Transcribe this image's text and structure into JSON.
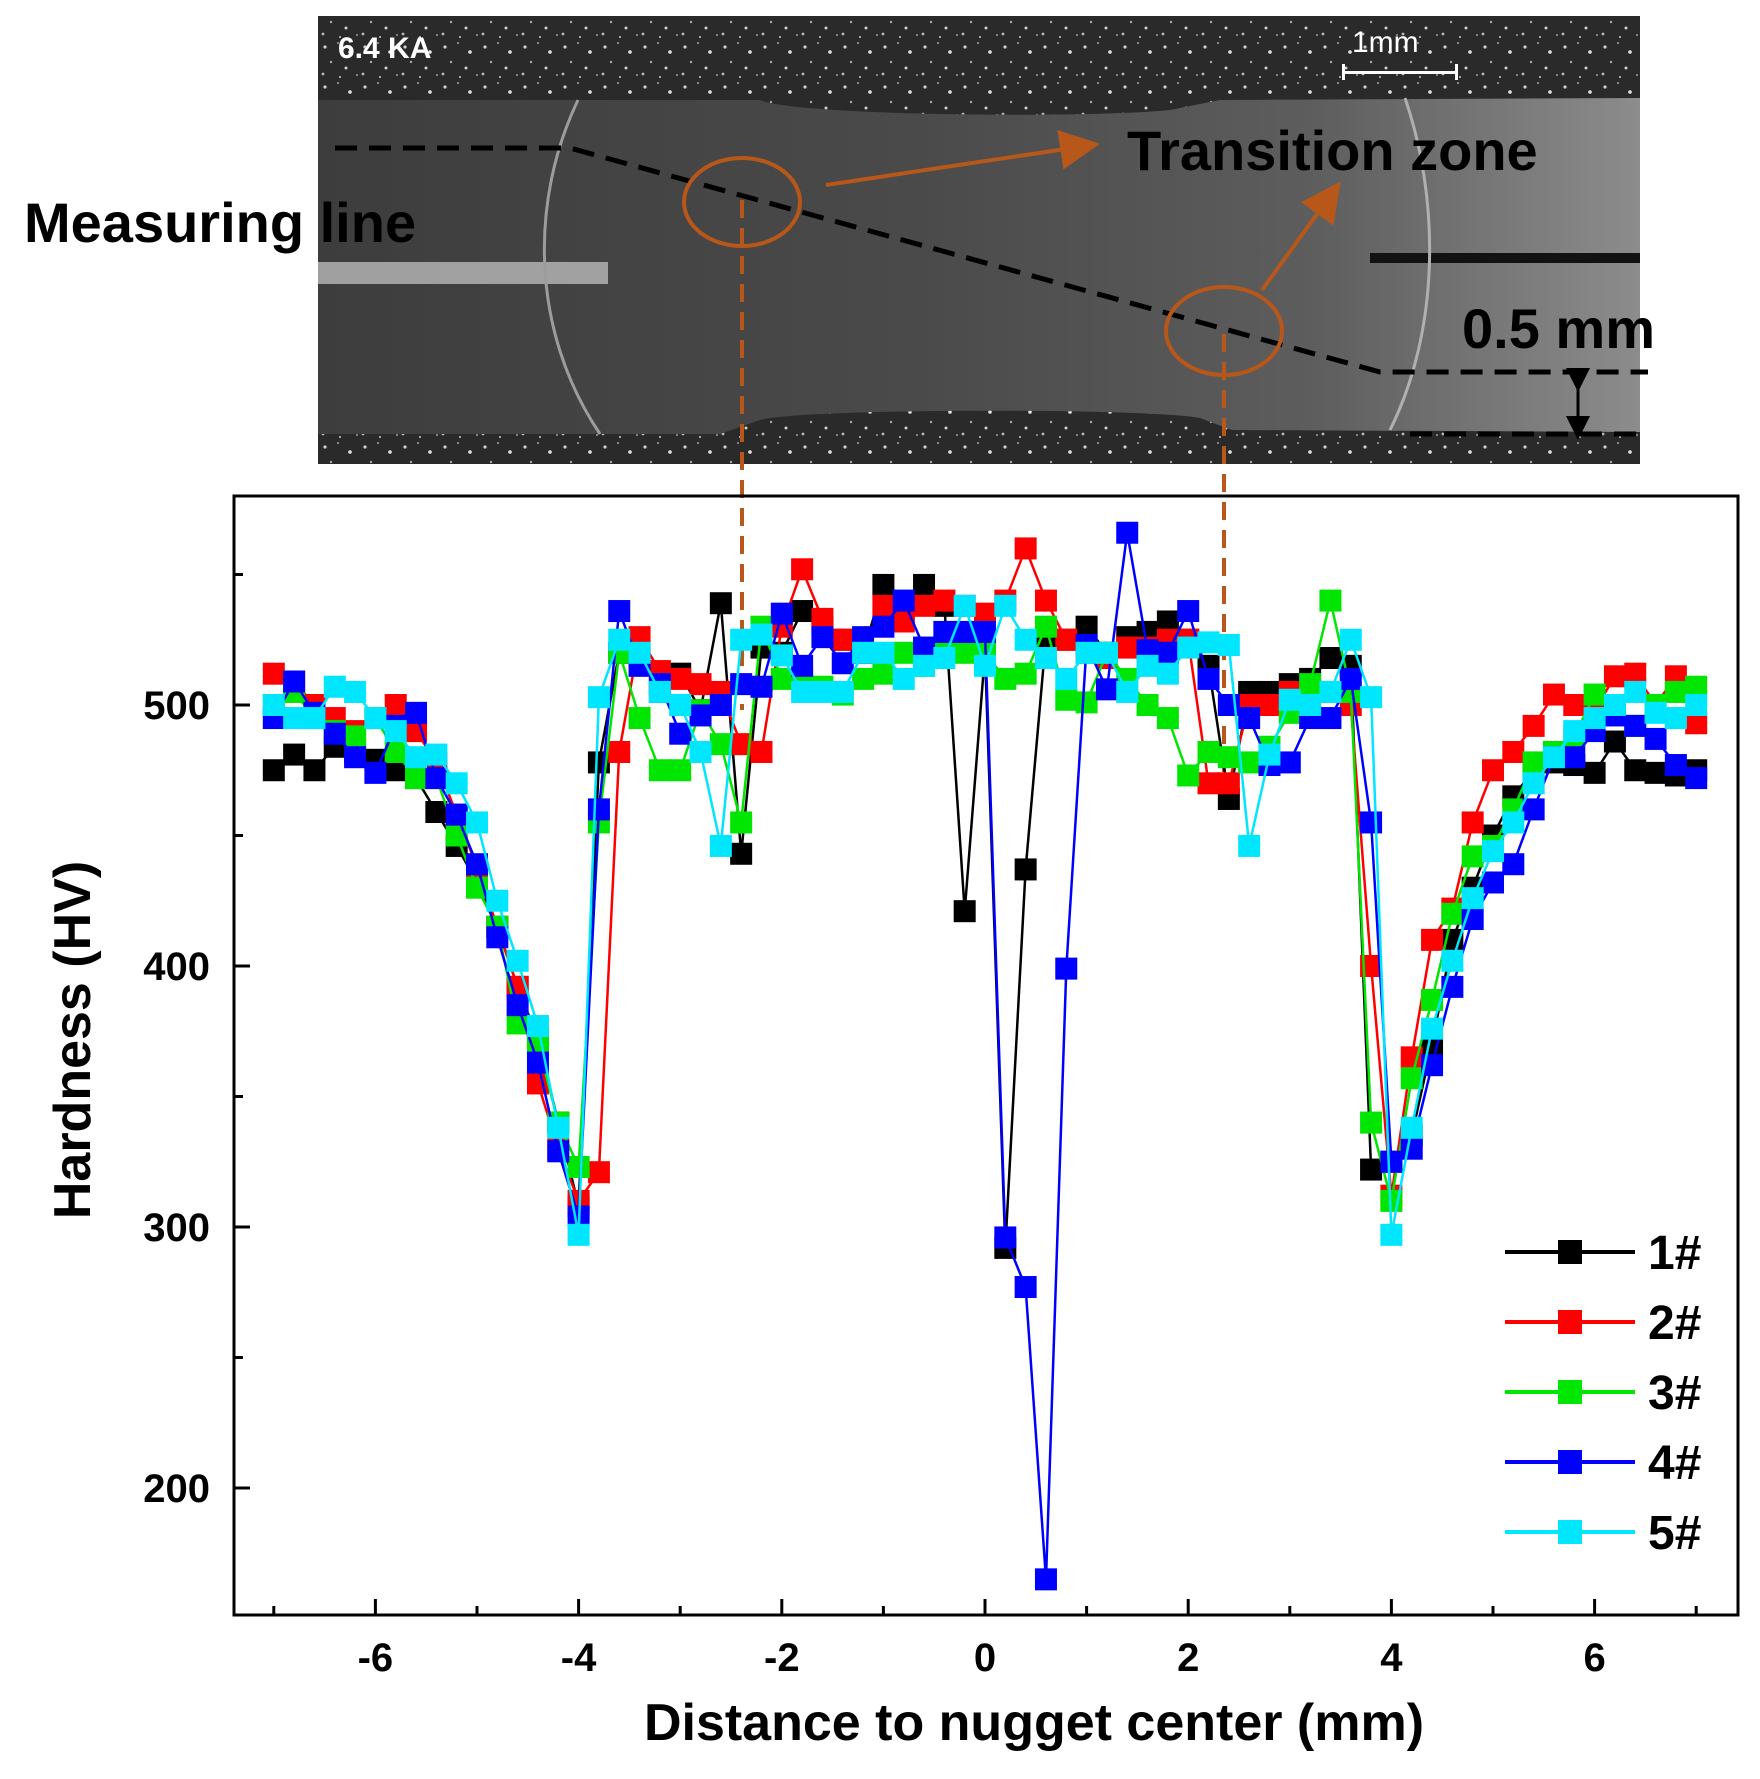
{
  "micrograph": {
    "current_label": "6.4 KA",
    "scale_label": "1mm",
    "measuring_line_label": "Measuring line",
    "transition_zone_label": "Transition zone",
    "offset_label": "0.5 mm"
  },
  "colors": {
    "annotation": "#b8571a",
    "s1": "#000000",
    "s2": "#ff0000",
    "s3": "#00e600",
    "s4": "#0000ff",
    "s5": "#00e6ff"
  },
  "chart_data": {
    "type": "line",
    "xlabel": "Distance to nugget center (mm)",
    "ylabel": "Hardness (HV)",
    "xlim": [
      -7.2,
      7.4
    ],
    "ylim": [
      150,
      580
    ],
    "xticks": [
      -6,
      -4,
      -2,
      0,
      2,
      4,
      6
    ],
    "yticks": [
      200,
      300,
      400,
      500
    ],
    "legend_position": "bottom-right",
    "x": [
      -7,
      -6.8,
      -6.6,
      -6.4,
      -6.2,
      -6,
      -5.8,
      -5.6,
      -5.4,
      -5.2,
      -5,
      -4.8,
      -4.6,
      -4.4,
      -4.2,
      -4,
      -3.8,
      -3.6,
      -3.4,
      -3.2,
      -3,
      -2.8,
      -2.6,
      -2.4,
      -2.2,
      -2,
      -1.8,
      -1.6,
      -1.4,
      -1.2,
      -1,
      -0.8,
      -0.6,
      -0.4,
      -0.2,
      0,
      0.2,
      0.4,
      0.6,
      0.8,
      1,
      1.2,
      1.4,
      1.6,
      1.8,
      2,
      2.2,
      2.4,
      2.6,
      2.8,
      3,
      3.2,
      3.4,
      3.6,
      3.8,
      4,
      4.2,
      4.4,
      4.6,
      4.8,
      5,
      5.2,
      5.4,
      5.6,
      5.8,
      6,
      6.2,
      6.4,
      6.6,
      6.8,
      7
    ],
    "series": [
      {
        "name": "1#",
        "color": "#000000",
        "values": [
          475,
          481,
          475,
          484,
          482,
          479,
          475,
          472,
          459,
          446,
          432,
          415,
          392,
          372,
          340,
          308,
          478,
          520,
          518,
          505,
          512,
          498,
          539,
          443,
          522,
          520,
          536,
          530,
          525,
          520,
          546,
          535,
          546,
          538,
          421,
          520,
          292,
          437,
          526,
          525,
          530,
          520,
          526,
          528,
          532,
          525,
          515,
          464,
          505,
          505,
          508,
          510,
          518,
          515,
          322,
          325,
          335,
          370,
          410,
          430,
          450,
          465,
          475,
          478,
          477,
          474,
          486,
          475,
          474,
          473,
          475
        ]
      },
      {
        "name": "2#",
        "color": "#ff0000",
        "values": [
          512,
          509,
          500,
          495,
          490,
          495,
          500,
          490,
          478,
          458,
          438,
          415,
          392,
          355,
          330,
          310,
          321,
          482,
          526,
          513,
          510,
          508,
          505,
          485,
          482,
          530,
          552,
          533,
          525,
          520,
          538,
          532,
          538,
          540,
          538,
          535,
          540,
          560,
          540,
          525,
          520,
          518,
          522,
          522,
          525,
          525,
          470,
          470,
          500,
          500,
          505,
          500,
          505,
          500,
          400,
          312,
          365,
          410,
          422,
          455,
          475,
          482,
          492,
          504,
          500,
          498,
          511,
          512,
          500,
          511,
          493
        ]
      },
      {
        "name": "3#",
        "color": "#00e600",
        "values": [
          500,
          505,
          495,
          490,
          488,
          495,
          482,
          472,
          472,
          450,
          430,
          415,
          378,
          370,
          340,
          323,
          455,
          520,
          495,
          475,
          475,
          498,
          485,
          455,
          530,
          510,
          510,
          507,
          504,
          510,
          512,
          520,
          515,
          520,
          520,
          520,
          510,
          512,
          530,
          502,
          501,
          520,
          510,
          500,
          495,
          473,
          482,
          480,
          478,
          484,
          497,
          508,
          540,
          505,
          340,
          310,
          357,
          387,
          420,
          442,
          446,
          460,
          478,
          482,
          488,
          504,
          499,
          492,
          500,
          505,
          507
        ]
      },
      {
        "name": "4#",
        "color": "#0000ff",
        "values": [
          495,
          509,
          497,
          489,
          480,
          474,
          492,
          497,
          472,
          458,
          439,
          411,
          385,
          363,
          329,
          304,
          460,
          536,
          515,
          508,
          489,
          496,
          500,
          508,
          507,
          535,
          515,
          526,
          516,
          526,
          530,
          540,
          522,
          528,
          528,
          528,
          296,
          277,
          165,
          399,
          523,
          506,
          566,
          521,
          520,
          536,
          510,
          500,
          495,
          477,
          478,
          495,
          495,
          510,
          455,
          325,
          330,
          362,
          392,
          418,
          432,
          439,
          460,
          480,
          480,
          490,
          496,
          492,
          487,
          477,
          472
        ]
      },
      {
        "name": "5#",
        "color": "#00e6ff",
        "values": [
          500,
          495,
          495,
          507,
          505,
          495,
          490,
          480,
          481,
          470,
          455,
          425,
          402,
          377,
          338,
          297,
          503,
          525,
          520,
          505,
          500,
          482,
          446,
          525,
          527,
          519,
          505,
          505,
          505,
          520,
          520,
          510,
          515,
          518,
          538,
          515,
          538,
          525,
          518,
          510,
          520,
          520,
          505,
          515,
          512,
          522,
          524,
          523,
          446,
          481,
          502,
          500,
          505,
          525,
          503,
          297,
          338,
          376,
          402,
          426,
          444,
          455,
          470,
          480,
          490,
          495,
          500,
          505,
          497,
          495,
          500
        ]
      }
    ]
  }
}
